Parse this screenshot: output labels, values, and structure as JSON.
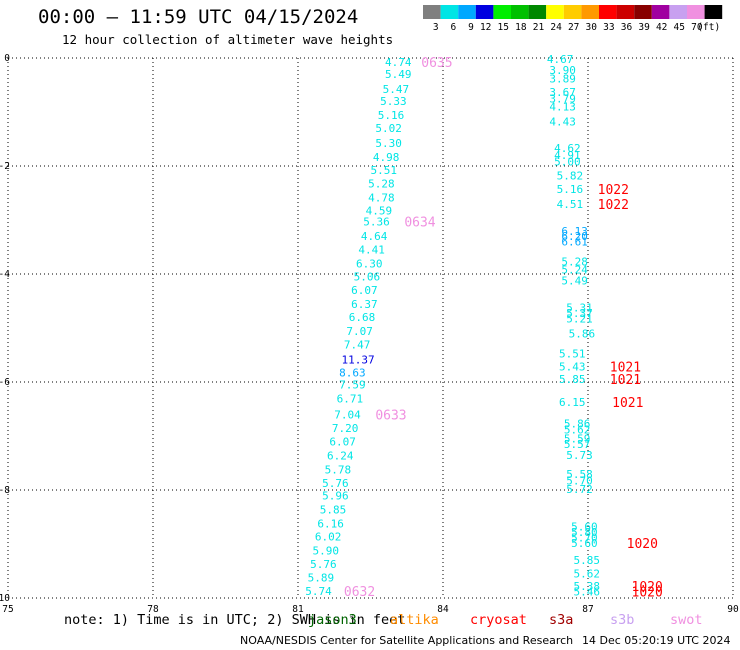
{
  "header": {
    "title": "00:00 – 11:59 UTC 04/15/2024",
    "subtitle": "12 hour collection of altimeter wave heights"
  },
  "colorbar": {
    "labels": [
      "3",
      "6",
      "9",
      "12",
      "15",
      "18",
      "21",
      "24",
      "27",
      "30",
      "33",
      "36",
      "39",
      "42",
      "45",
      "70",
      "(ft)"
    ],
    "colors": [
      "#7f7f7f",
      "#00e5e5",
      "#00a8ff",
      "#0000e0",
      "#00ee00",
      "#00c000",
      "#008800",
      "#ffff00",
      "#ffcc00",
      "#ff9900",
      "#ff0000",
      "#cc0000",
      "#880000",
      "#a000a0",
      "#c8a0f0",
      "#f090e0",
      "#000000"
    ]
  },
  "footer": {
    "note": "note: 1) Time is in UTC; 2) SWH is in feet",
    "credit": "NOAA/NESDIS Center for Satellite Applications and Research",
    "timestamp": "14 Dec 05:20:19 UTC 2024",
    "missions": [
      {
        "name": "jason3",
        "color": "#006400"
      },
      {
        "name": "altika",
        "color": "#ff8c00"
      },
      {
        "name": "cryosat",
        "color": "#ff0000"
      },
      {
        "name": "s3a",
        "color": "#a00000"
      },
      {
        "name": "s3b",
        "color": "#c8a0f0"
      },
      {
        "name": "swot",
        "color": "#f090e0"
      }
    ]
  },
  "chart_data": {
    "type": "scatter",
    "title": "00:00 – 11:59 UTC 04/15/2024",
    "xlim": [
      75,
      90
    ],
    "ylim": [
      -10,
      0
    ],
    "xticks": [
      "75",
      "78",
      "81",
      "84",
      "87",
      "90"
    ],
    "yticks": [
      "0",
      "-2",
      "-4",
      "-6",
      "-8",
      "-10"
    ],
    "grid": true,
    "swh_labels": [
      {
        "x": 82.8,
        "y": -0.07,
        "v": "4.74",
        "c": "#00e5e5"
      },
      {
        "x": 82.8,
        "y": -0.3,
        "v": "5.49",
        "c": "#00e5e5"
      },
      {
        "x": 82.75,
        "y": -0.57,
        "v": "5.47",
        "c": "#00e5e5"
      },
      {
        "x": 82.7,
        "y": -0.8,
        "v": "5.33",
        "c": "#00e5e5"
      },
      {
        "x": 82.65,
        "y": -1.06,
        "v": "5.16",
        "c": "#00e5e5"
      },
      {
        "x": 82.6,
        "y": -1.3,
        "v": "5.02",
        "c": "#00e5e5"
      },
      {
        "x": 82.6,
        "y": -1.57,
        "v": "5.30",
        "c": "#00e5e5"
      },
      {
        "x": 82.55,
        "y": -1.83,
        "v": "4.98",
        "c": "#00e5e5"
      },
      {
        "x": 82.5,
        "y": -2.07,
        "v": "5.51",
        "c": "#00e5e5"
      },
      {
        "x": 82.45,
        "y": -2.32,
        "v": "5.28",
        "c": "#00e5e5"
      },
      {
        "x": 82.45,
        "y": -2.58,
        "v": "4.78",
        "c": "#00e5e5"
      },
      {
        "x": 82.4,
        "y": -2.82,
        "v": "4.59",
        "c": "#00e5e5"
      },
      {
        "x": 82.35,
        "y": -3.03,
        "v": "5.36",
        "c": "#00e5e5"
      },
      {
        "x": 82.3,
        "y": -3.3,
        "v": "4.64",
        "c": "#00e5e5"
      },
      {
        "x": 82.25,
        "y": -3.55,
        "v": "4.41",
        "c": "#00e5e5"
      },
      {
        "x": 82.2,
        "y": -3.81,
        "v": "6.30",
        "c": "#00e5e5"
      },
      {
        "x": 82.15,
        "y": -4.05,
        "v": "5.06",
        "c": "#00e5e5"
      },
      {
        "x": 82.1,
        "y": -4.3,
        "v": "6.07",
        "c": "#00e5e5"
      },
      {
        "x": 82.1,
        "y": -4.56,
        "v": "6.37",
        "c": "#00e5e5"
      },
      {
        "x": 82.05,
        "y": -4.8,
        "v": "6.68",
        "c": "#00e5e5"
      },
      {
        "x": 82.0,
        "y": -5.06,
        "v": "7.07",
        "c": "#00e5e5"
      },
      {
        "x": 81.95,
        "y": -5.31,
        "v": "7.47",
        "c": "#00e5e5"
      },
      {
        "x": 81.9,
        "y": -5.58,
        "v": "11.37",
        "c": "#0000e0"
      },
      {
        "x": 81.85,
        "y": -5.82,
        "v": "8.63",
        "c": "#00a8ff"
      },
      {
        "x": 81.85,
        "y": -6.05,
        "v": "7.59",
        "c": "#00e5e5"
      },
      {
        "x": 81.8,
        "y": -6.31,
        "v": "6.71",
        "c": "#00e5e5"
      },
      {
        "x": 81.75,
        "y": -6.6,
        "v": "7.04",
        "c": "#00e5e5"
      },
      {
        "x": 81.7,
        "y": -6.85,
        "v": "7.20",
        "c": "#00e5e5"
      },
      {
        "x": 81.65,
        "y": -7.1,
        "v": "6.07",
        "c": "#00e5e5"
      },
      {
        "x": 81.6,
        "y": -7.36,
        "v": "6.24",
        "c": "#00e5e5"
      },
      {
        "x": 81.55,
        "y": -7.62,
        "v": "5.78",
        "c": "#00e5e5"
      },
      {
        "x": 81.5,
        "y": -7.87,
        "v": "5.76",
        "c": "#00e5e5"
      },
      {
        "x": 81.5,
        "y": -8.1,
        "v": "5.96",
        "c": "#00e5e5"
      },
      {
        "x": 81.45,
        "y": -8.36,
        "v": "5.85",
        "c": "#00e5e5"
      },
      {
        "x": 81.4,
        "y": -8.62,
        "v": "6.16",
        "c": "#00e5e5"
      },
      {
        "x": 81.35,
        "y": -8.86,
        "v": "6.02",
        "c": "#00e5e5"
      },
      {
        "x": 81.3,
        "y": -9.12,
        "v": "5.90",
        "c": "#00e5e5"
      },
      {
        "x": 81.25,
        "y": -9.37,
        "v": "5.76",
        "c": "#00e5e5"
      },
      {
        "x": 81.2,
        "y": -9.62,
        "v": "5.89",
        "c": "#00e5e5"
      },
      {
        "x": 81.15,
        "y": -9.87,
        "v": "5.74",
        "c": "#00e5e5"
      },
      {
        "x": 86.15,
        "y": -0.02,
        "v": "4.67",
        "c": "#00e5e5"
      },
      {
        "x": 86.2,
        "y": -0.22,
        "v": "3.90",
        "c": "#00e5e5"
      },
      {
        "x": 86.2,
        "y": -0.38,
        "v": "3.89",
        "c": "#00e5e5"
      },
      {
        "x": 86.2,
        "y": -0.63,
        "v": "3.67",
        "c": "#00e5e5"
      },
      {
        "x": 86.2,
        "y": -0.75,
        "v": "3.79",
        "c": "#00e5e5"
      },
      {
        "x": 86.2,
        "y": -0.9,
        "v": "4.13",
        "c": "#00e5e5"
      },
      {
        "x": 86.2,
        "y": -1.18,
        "v": "4.43",
        "c": "#00e5e5"
      },
      {
        "x": 86.3,
        "y": -1.67,
        "v": "4.62",
        "c": "#00e5e5"
      },
      {
        "x": 86.3,
        "y": -1.8,
        "v": "4.91",
        "c": "#00e5e5"
      },
      {
        "x": 86.3,
        "y": -1.92,
        "v": "5.00",
        "c": "#00e5e5"
      },
      {
        "x": 86.35,
        "y": -2.18,
        "v": "5.82",
        "c": "#00e5e5"
      },
      {
        "x": 86.35,
        "y": -2.43,
        "v": "5.16",
        "c": "#00e5e5"
      },
      {
        "x": 86.35,
        "y": -2.7,
        "v": "4.51",
        "c": "#00e5e5"
      },
      {
        "x": 86.45,
        "y": -3.2,
        "v": "6.13",
        "c": "#00a8ff"
      },
      {
        "x": 86.45,
        "y": -3.3,
        "v": "6.20",
        "c": "#00a8ff"
      },
      {
        "x": 86.45,
        "y": -3.4,
        "v": "6.61",
        "c": "#00a8ff"
      },
      {
        "x": 86.45,
        "y": -3.77,
        "v": "5.28",
        "c": "#00e5e5"
      },
      {
        "x": 86.45,
        "y": -3.92,
        "v": "5.24",
        "c": "#00e5e5"
      },
      {
        "x": 86.45,
        "y": -4.12,
        "v": "5.49",
        "c": "#00e5e5"
      },
      {
        "x": 86.55,
        "y": -4.62,
        "v": "5.31",
        "c": "#00e5e5"
      },
      {
        "x": 86.55,
        "y": -4.72,
        "v": "5.37",
        "c": "#00e5e5"
      },
      {
        "x": 86.55,
        "y": -4.82,
        "v": "5.21",
        "c": "#00e5e5"
      },
      {
        "x": 86.6,
        "y": -5.1,
        "v": "5.86",
        "c": "#00e5e5"
      },
      {
        "x": 86.4,
        "y": -5.47,
        "v": "5.51",
        "c": "#00e5e5"
      },
      {
        "x": 86.4,
        "y": -5.71,
        "v": "5.43",
        "c": "#00e5e5"
      },
      {
        "x": 86.4,
        "y": -5.94,
        "v": "5.85",
        "c": "#00e5e5"
      },
      {
        "x": 86.4,
        "y": -6.37,
        "v": "6.15",
        "c": "#00e5e5"
      },
      {
        "x": 86.5,
        "y": -6.77,
        "v": "5.86",
        "c": "#00e5e5"
      },
      {
        "x": 86.5,
        "y": -6.88,
        "v": "5.62",
        "c": "#00e5e5"
      },
      {
        "x": 86.5,
        "y": -7.05,
        "v": "5.59",
        "c": "#00e5e5"
      },
      {
        "x": 86.5,
        "y": -7.15,
        "v": "5.57",
        "c": "#00e5e5"
      },
      {
        "x": 86.55,
        "y": -7.35,
        "v": "5.73",
        "c": "#00e5e5"
      },
      {
        "x": 86.55,
        "y": -7.7,
        "v": "5.58",
        "c": "#00e5e5"
      },
      {
        "x": 86.55,
        "y": -7.82,
        "v": "5.70",
        "c": "#00e5e5"
      },
      {
        "x": 86.55,
        "y": -7.98,
        "v": "5.72",
        "c": "#00e5e5"
      },
      {
        "x": 86.65,
        "y": -8.68,
        "v": "5.60",
        "c": "#00e5e5"
      },
      {
        "x": 86.65,
        "y": -8.78,
        "v": "5.80",
        "c": "#00e5e5"
      },
      {
        "x": 86.65,
        "y": -8.88,
        "v": "5.70",
        "c": "#00e5e5"
      },
      {
        "x": 86.65,
        "y": -8.98,
        "v": "5.60",
        "c": "#00e5e5"
      },
      {
        "x": 86.7,
        "y": -9.3,
        "v": "5.85",
        "c": "#00e5e5"
      },
      {
        "x": 86.7,
        "y": -9.55,
        "v": "5.62",
        "c": "#00e5e5"
      },
      {
        "x": 86.7,
        "y": -9.78,
        "v": "5.38",
        "c": "#00e5e5"
      },
      {
        "x": 86.7,
        "y": -9.88,
        "v": "5.46",
        "c": "#00e5e5"
      }
    ],
    "time_labels": [
      {
        "x": 83.55,
        "y": -0.07,
        "v": "0635",
        "c": "#f090e0"
      },
      {
        "x": 83.2,
        "y": -3.03,
        "v": "0634",
        "c": "#f090e0"
      },
      {
        "x": 82.6,
        "y": -6.6,
        "v": "0633",
        "c": "#f090e0"
      },
      {
        "x": 81.95,
        "y": -9.87,
        "v": "0632",
        "c": "#f090e0"
      },
      {
        "x": 87.2,
        "y": -2.43,
        "v": "1022",
        "c": "#ff0000"
      },
      {
        "x": 87.2,
        "y": -2.7,
        "v": "1022",
        "c": "#ff0000"
      },
      {
        "x": 87.45,
        "y": -5.71,
        "v": "1021",
        "c": "#ff0000"
      },
      {
        "x": 87.45,
        "y": -5.94,
        "v": "1021",
        "c": "#ff0000"
      },
      {
        "x": 87.5,
        "y": -6.37,
        "v": "1021",
        "c": "#ff0000"
      },
      {
        "x": 87.8,
        "y": -8.98,
        "v": "1020",
        "c": "#ff0000"
      },
      {
        "x": 87.9,
        "y": -9.78,
        "v": "1020",
        "c": "#ff0000"
      },
      {
        "x": 87.9,
        "y": -9.88,
        "v": "1020",
        "c": "#ff0000"
      }
    ]
  }
}
